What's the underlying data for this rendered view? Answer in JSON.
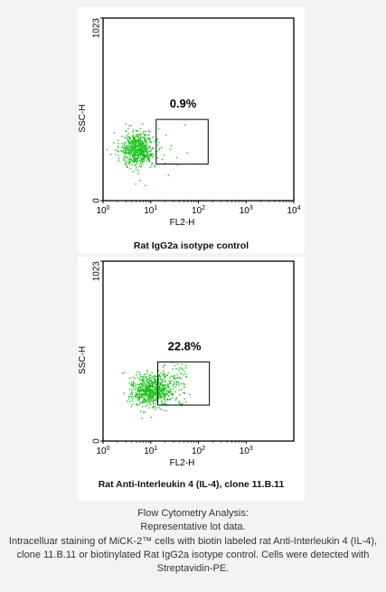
{
  "chart_data": [
    {
      "type": "scatter",
      "title": "Rat IgG2a isotype control",
      "xlabel": "FL2-H",
      "ylabel": "SSC-H",
      "x_scale": "log",
      "xlim": [
        1,
        10000
      ],
      "x_ticks": [
        {
          "base": "10",
          "exp": "0"
        },
        {
          "base": "10",
          "exp": "1"
        },
        {
          "base": "10",
          "exp": "2"
        },
        {
          "base": "10",
          "exp": "3"
        },
        {
          "base": "10",
          "exp": "4"
        }
      ],
      "ylim": [
        0,
        1023
      ],
      "y_ticks": [
        "0",
        "1023"
      ],
      "grid": false,
      "point_color": "#1fc21f",
      "population_center": {
        "x": 5.2,
        "y": 290
      },
      "gate": {
        "x_range": [
          13,
          160
        ],
        "y_range": [
          205,
          455
        ],
        "label": "0.9%"
      }
    },
    {
      "type": "scatter",
      "title": "Rat Anti-Interleukin 4 (IL-4), clone 11.B.11",
      "xlabel": "FL2-H",
      "ylabel": "SSC-H",
      "x_scale": "log",
      "xlim": [
        1,
        10000
      ],
      "x_ticks": [
        {
          "base": "10",
          "exp": "0"
        },
        {
          "base": "10",
          "exp": "1"
        },
        {
          "base": "10",
          "exp": "2"
        },
        {
          "base": "10",
          "exp": "3"
        }
      ],
      "ylim": [
        0,
        1023
      ],
      "y_ticks": [
        "0",
        "1023"
      ],
      "grid": false,
      "point_color": "#1fc21f",
      "population_center": {
        "x": 10,
        "y": 290
      },
      "gate": {
        "x_range": [
          14,
          170
        ],
        "y_range": [
          205,
          450
        ],
        "label": "22.8%"
      }
    }
  ],
  "caption": {
    "line1": "Flow Cytometry Analysis:",
    "line2": "Representative lot data.",
    "line3": "Intracelluar staining of MiCK-2™ cells with biotin labeled rat Anti-Interleukin 4 (IL-4), clone 11.B.11 or biotinylated Rat IgG2a isotype control. Cells were detected with Streptavidin-PE."
  }
}
